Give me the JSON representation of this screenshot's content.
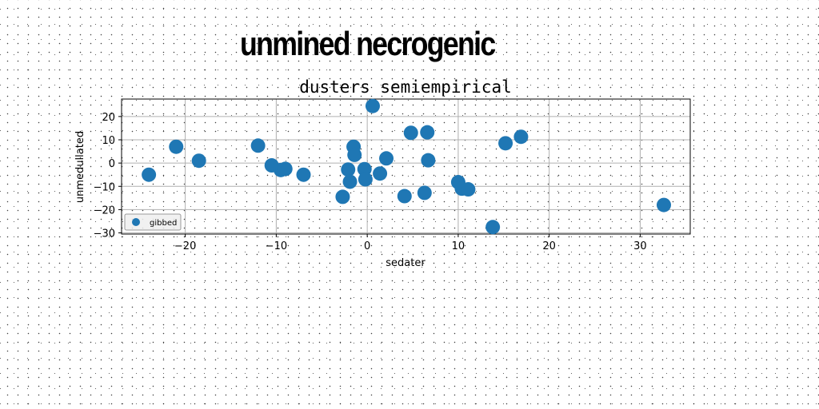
{
  "page": {
    "title": "unmined necrogenic"
  },
  "chart_data": {
    "type": "scatter",
    "title": "dusters semiempirical",
    "xlabel": "sedater",
    "ylabel": "unmedullated",
    "xlim": [
      -27,
      35.5
    ],
    "ylim": [
      -30.5,
      27.5
    ],
    "xticks": [
      -20,
      -10,
      0,
      10,
      20,
      30
    ],
    "yticks": [
      -30,
      -20,
      -10,
      0,
      10,
      20
    ],
    "grid": true,
    "legend_position": "lower-left",
    "series": [
      {
        "name": "gibbed",
        "color": "#1f77b4",
        "points": [
          {
            "x": -24,
            "y": -5
          },
          {
            "x": -21,
            "y": 7
          },
          {
            "x": -18.5,
            "y": 1
          },
          {
            "x": -12,
            "y": 7.5
          },
          {
            "x": -10.5,
            "y": -1
          },
          {
            "x": -9.5,
            "y": -3
          },
          {
            "x": -9,
            "y": -2.5
          },
          {
            "x": -7,
            "y": -5
          },
          {
            "x": -2.7,
            "y": -14.5
          },
          {
            "x": -2.1,
            "y": -2.8
          },
          {
            "x": -1.9,
            "y": -8
          },
          {
            "x": -1.5,
            "y": 7
          },
          {
            "x": -1.4,
            "y": 3.5
          },
          {
            "x": -0.3,
            "y": -2.6
          },
          {
            "x": -0.2,
            "y": -7
          },
          {
            "x": 0.6,
            "y": 24.5
          },
          {
            "x": 1.4,
            "y": -4.5
          },
          {
            "x": 2.1,
            "y": 2
          },
          {
            "x": 4.1,
            "y": -14.2
          },
          {
            "x": 4.8,
            "y": 13
          },
          {
            "x": 6.3,
            "y": -12.8
          },
          {
            "x": 6.6,
            "y": 13.2
          },
          {
            "x": 6.7,
            "y": 1.2
          },
          {
            "x": 10,
            "y": -8.2
          },
          {
            "x": 10.4,
            "y": -11
          },
          {
            "x": 11.1,
            "y": -11.3
          },
          {
            "x": 13.8,
            "y": -27.5
          },
          {
            "x": 15.2,
            "y": 8.5
          },
          {
            "x": 16.9,
            "y": 11.3
          },
          {
            "x": 32.6,
            "y": -18
          }
        ]
      }
    ]
  }
}
